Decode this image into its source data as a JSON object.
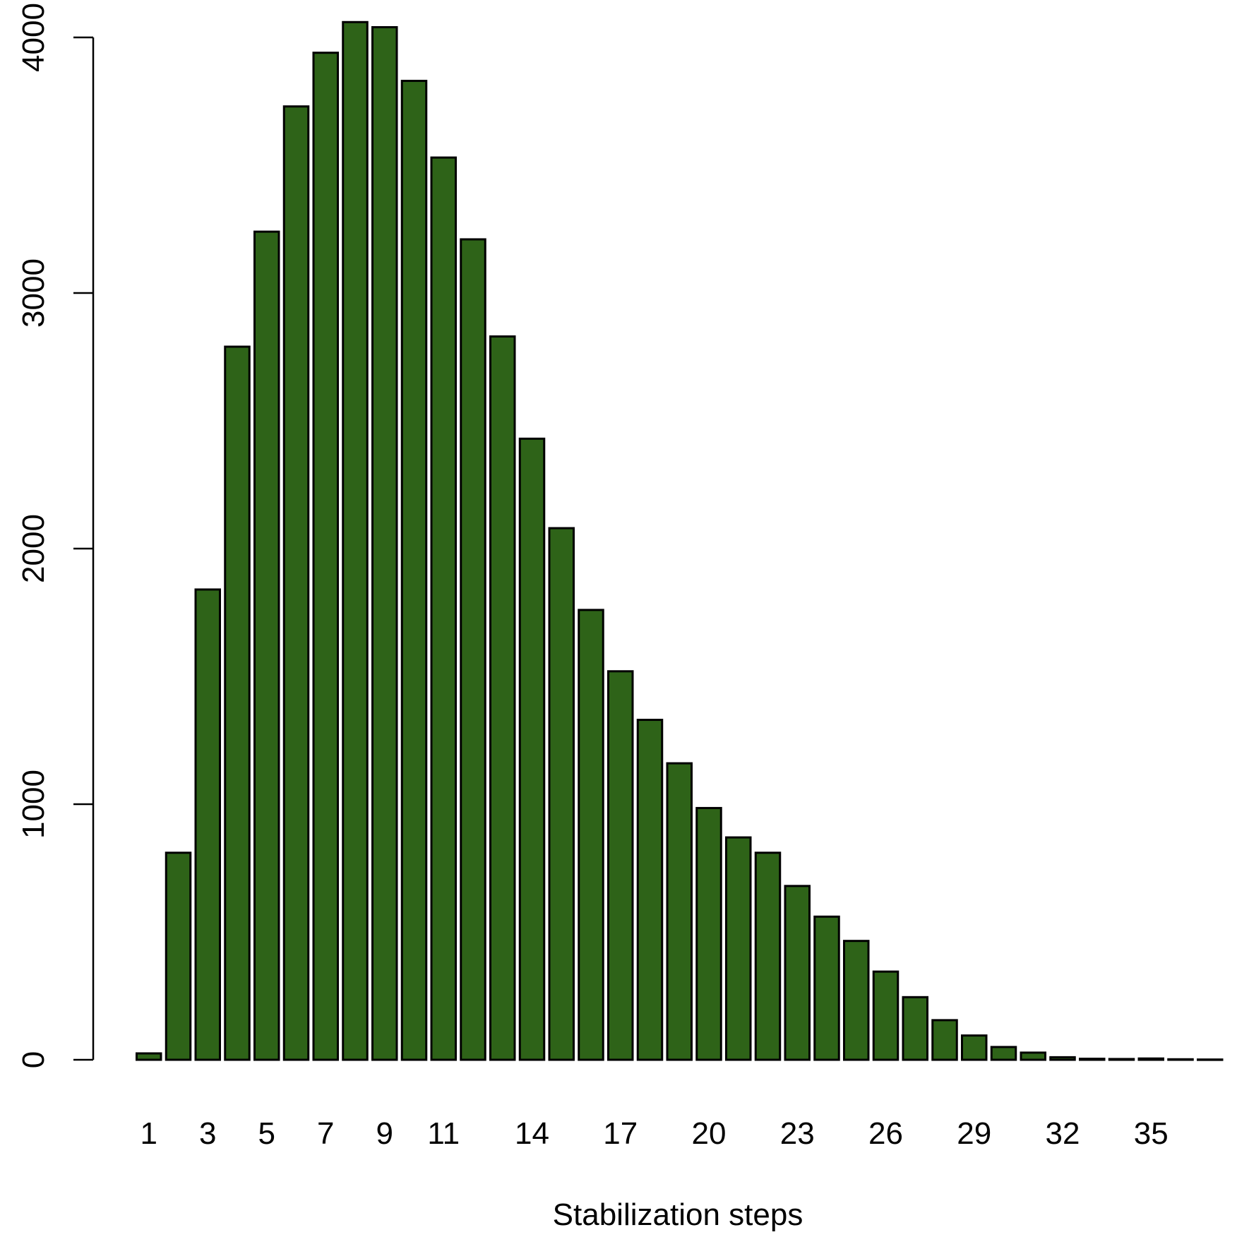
{
  "chart_data": {
    "type": "bar",
    "categories": [
      "1",
      "2",
      "3",
      "4",
      "5",
      "6",
      "7",
      "8",
      "9",
      "10",
      "11",
      "12",
      "13",
      "14",
      "15",
      "16",
      "17",
      "18",
      "19",
      "20",
      "21",
      "22",
      "23",
      "24",
      "25",
      "26",
      "27",
      "28",
      "29",
      "30",
      "31",
      "32",
      "33",
      "34",
      "35",
      "36",
      "37"
    ],
    "values": [
      25,
      810,
      1840,
      2790,
      3240,
      3730,
      3940,
      4060,
      4040,
      3830,
      3530,
      3210,
      2830,
      2430,
      2080,
      1760,
      1520,
      1330,
      1160,
      985,
      870,
      810,
      680,
      560,
      465,
      345,
      245,
      155,
      95,
      50,
      28,
      10,
      4,
      3,
      5,
      2,
      1
    ],
    "x_tick_labels": [
      "1",
      "",
      "3",
      "",
      "5",
      "",
      "7",
      "",
      "9",
      "",
      "11",
      "",
      "",
      "14",
      "",
      "",
      "17",
      "",
      "",
      "20",
      "",
      "",
      "23",
      "",
      "",
      "26",
      "",
      "",
      "29",
      "",
      "",
      "32",
      "",
      "",
      "35",
      "",
      ""
    ],
    "y_ticks": [
      0,
      1000,
      2000,
      3000,
      4000
    ],
    "ylim": [
      0,
      4000
    ],
    "title": "",
    "xlabel": "Stabilization steps",
    "ylabel": "",
    "bar_color": "#2e6318",
    "grid": false,
    "legend": "none"
  }
}
